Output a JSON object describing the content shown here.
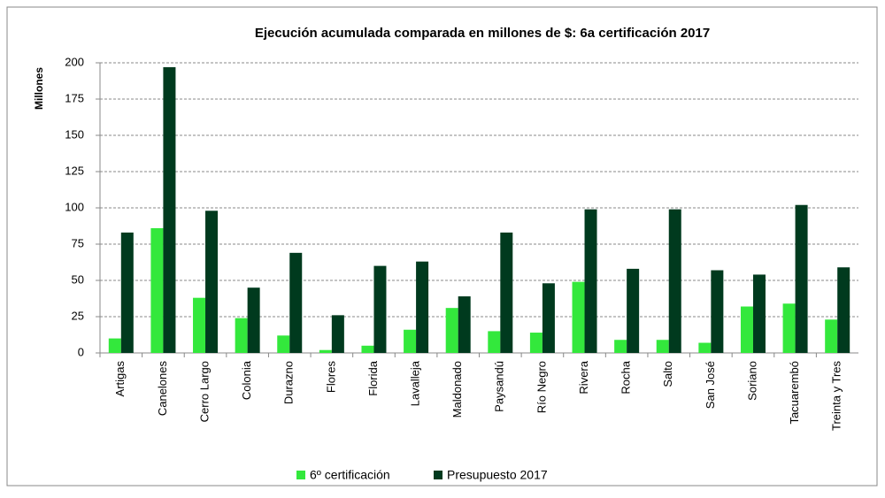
{
  "chart_data": {
    "type": "bar",
    "title": "Ejecución acumulada comparada en millones de $: 6a certificación 2017",
    "y_label": "Millones",
    "categories": [
      "Artigas",
      "Canelones",
      "Cerro Largo",
      "Colonia",
      "Durazno",
      "Flores",
      "Florida",
      "Lavalleja",
      "Maldonado",
      "Paysandú",
      "Río Negro",
      "Rivera",
      "Rocha",
      "Salto",
      "San José",
      "Soriano",
      "Tacuarembó",
      "Treinta y Tres"
    ],
    "series": [
      {
        "name": "6º certificación",
        "color": "#33e83c",
        "values": [
          10,
          86,
          38,
          24,
          12,
          2,
          5,
          16,
          31,
          15,
          14,
          49,
          9,
          9,
          7,
          32,
          34,
          23
        ]
      },
      {
        "name": "Presupuesto 2017",
        "color": "#003a1e",
        "values": [
          83,
          197,
          98,
          45,
          69,
          26,
          60,
          63,
          39,
          83,
          48,
          99,
          58,
          99,
          57,
          54,
          102,
          59
        ]
      }
    ],
    "ylim": [
      0,
      200
    ],
    "yticks": [
      0,
      25,
      50,
      75,
      100,
      125,
      150,
      175,
      200
    ],
    "grid": true,
    "legend": "bottom"
  }
}
